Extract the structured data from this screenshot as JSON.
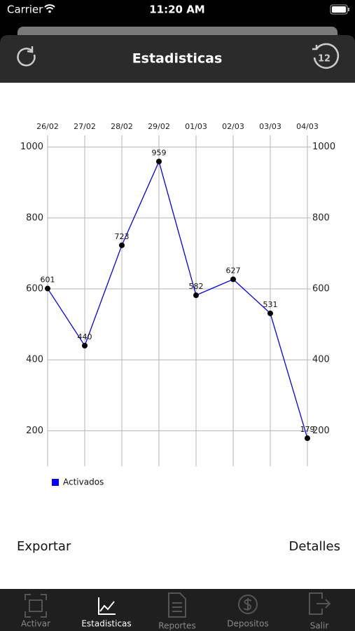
{
  "status_bar": {
    "carrier": "Carrier",
    "time": "11:20 AM"
  },
  "header": {
    "title": "Estadisticas",
    "history_badge": "12"
  },
  "chart_data": {
    "type": "line",
    "categories": [
      "26/02",
      "27/02",
      "28/02",
      "29/02",
      "01/03",
      "02/03",
      "03/03",
      "04/03"
    ],
    "series": [
      {
        "name": "Activados",
        "color": "#0000ff",
        "values": [
          601,
          440,
          723,
          959,
          582,
          627,
          531,
          179
        ]
      }
    ],
    "ylim": [
      100,
      1033
    ],
    "yticks": [
      200,
      400,
      600,
      800,
      1000
    ],
    "y2lim": [
      100,
      1033
    ],
    "y2ticks": [
      200,
      400,
      600,
      800,
      1000
    ],
    "grid": true,
    "legend": "bottom"
  },
  "actions": {
    "export": "Exportar",
    "details": "Detalles"
  },
  "tabs": [
    "Activar",
    "Estadisticas",
    "Reportes",
    "Depositos",
    "Salir"
  ]
}
